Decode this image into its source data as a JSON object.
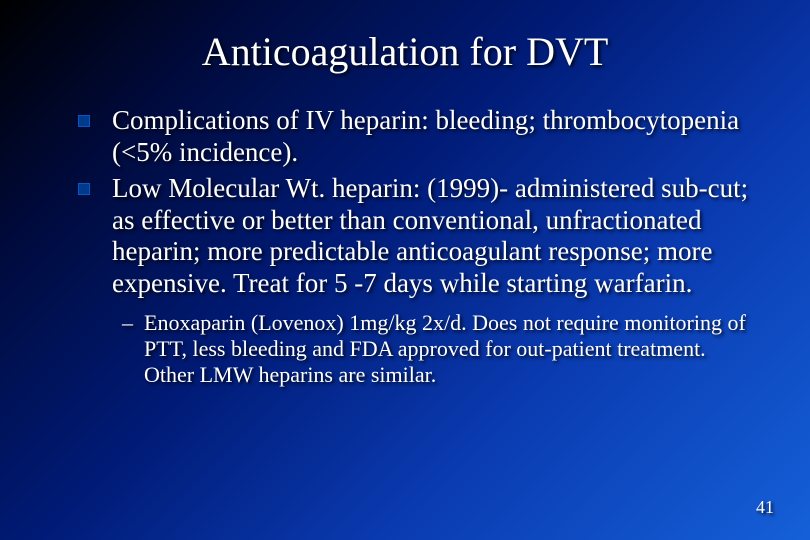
{
  "title": {
    "text": "Anticoagulation for DVT",
    "fontsize": 40
  },
  "bullets": [
    {
      "text": "Complications of IV heparin: bleeding; thrombocytopenia (<5% incidence)."
    },
    {
      "text": "Low Molecular Wt. heparin: (1999)- administered sub-cut; as effective or better than conventional, unfractionated heparin; more predictable anticoagulant response; more expensive. Treat for 5 -7 days while starting warfarin."
    }
  ],
  "bullet_fontsize": 27,
  "sub_bullets": [
    {
      "text": "Enoxaparin (Lovenox) 1mg/kg 2x/d.  Does not require monitoring of PTT, less bleeding and FDA approved for out-patient treatment.  Other LMW heparins are similar."
    }
  ],
  "sub_fontsize": 22,
  "page_number": "41",
  "pagenum_fontsize": 18,
  "colors": {
    "text": "#ffffff",
    "bullet_marker_fill": "#003a8c",
    "bullet_marker_border": "#0a56c2",
    "bg_gradient_start": "#000000",
    "bg_gradient_end": "#1560d8"
  }
}
